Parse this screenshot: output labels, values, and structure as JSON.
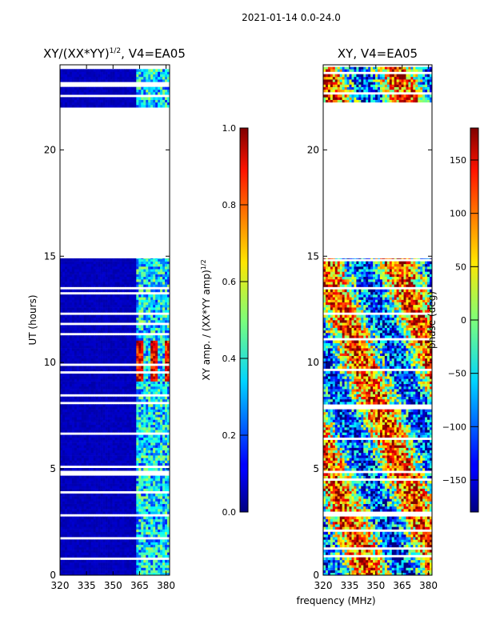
{
  "figure": {
    "suptitle": "2021-01-14 0.0-24.0",
    "xlabel": "frequency (MHz)"
  },
  "chart_data": [
    {
      "type": "heatmap",
      "title_main": "XY/(XX*YY)",
      "title_sup": "1/2",
      "title_rest": ", V4=EA05",
      "xlabel": "",
      "ylabel": "UT (hours)",
      "xlim": [
        320,
        382
      ],
      "ylim": [
        0,
        24
      ],
      "xticks": [
        320,
        335,
        350,
        365,
        380
      ],
      "yticks": [
        0,
        5,
        10,
        15,
        20
      ],
      "colorbar": {
        "label_main": "XY amp. / (XX*YY amp)",
        "label_sup": "1/2",
        "range": [
          0.0,
          1.0
        ],
        "ticks": [
          "0.0",
          "0.2",
          "0.4",
          "0.6",
          "0.8",
          "1.0"
        ],
        "tick_values": [
          0.0,
          0.2,
          0.4,
          0.6,
          0.8,
          1.0
        ]
      },
      "data_time_ranges_hours": [
        [
          0,
          14.9
        ],
        [
          22.0,
          23.9
        ]
      ],
      "gap_hours": [
        [
          14.9,
          22.0
        ]
      ],
      "features": "background amplitude ~0.05 below 362 MHz; elevated amplitude 0.2-0.6 in channels 362-382 MHz; peak amplitude ~0.8-1.0 near 365, 372, 380 MHz between 9 and 11 UT"
    },
    {
      "type": "heatmap",
      "title": "XY, V4=EA05",
      "xlabel": "",
      "ylabel": "",
      "xlim": [
        320,
        382
      ],
      "ylim": [
        0,
        24
      ],
      "xticks": [
        320,
        335,
        350,
        365,
        380
      ],
      "yticks": [
        0,
        5,
        10,
        15,
        20
      ],
      "colorbar": {
        "label": "phase (deg)",
        "range": [
          -180,
          180
        ],
        "ticks": [
          "−150",
          "−100",
          "−50",
          "0",
          "50",
          "100",
          "150"
        ],
        "tick_values": [
          -150,
          -100,
          -50,
          0,
          50,
          100,
          150
        ]
      },
      "data_time_ranges_hours": [
        [
          0,
          14.9
        ],
        [
          22.0,
          23.9
        ]
      ],
      "gap_hours": [
        [
          14.9,
          22.0
        ]
      ],
      "features": "phase spans full -180 to 180 deg range; noisy with broad structures across frequency"
    }
  ]
}
